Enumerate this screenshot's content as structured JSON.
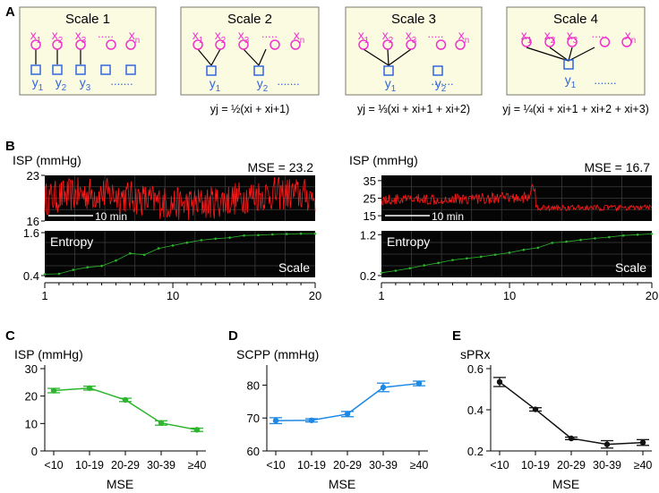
{
  "panel_labels": {
    "A": "A",
    "B": "B",
    "C": "C",
    "D": "D",
    "E": "E"
  },
  "colors": {
    "box_fill": "#fbfbe2",
    "box_stroke": "#7a7a6a",
    "node_circle": "#ee33cc",
    "node_square": "#3366dd",
    "green": "#2db52d",
    "blue": "#1e88e5",
    "black": "#111111",
    "red_trace": "#ff1a1a",
    "grid": "#3c3c3c",
    "dark_bg": "#050505"
  },
  "scales": [
    {
      "title": "Scale 1",
      "x_labels": [
        "x1",
        "x2",
        "x3",
        "xn"
      ],
      "dots": ".....",
      "y_labels": [
        "y1",
        "y2",
        "y3"
      ],
      "y_dots": ".......",
      "formula": ""
    },
    {
      "title": "Scale 2",
      "x_labels": [
        "x1",
        "x2",
        "x3",
        "xn"
      ],
      "dots": ".....",
      "y_labels": [
        "y1",
        "y2"
      ],
      "y_dots": ".......",
      "formula": "yj = ½(xi + xi+1)"
    },
    {
      "title": "Scale 3",
      "x_labels": [
        "x1",
        "x2",
        "x3",
        "xn"
      ],
      "dots": ".....",
      "y_labels": [
        "y1",
        "y2"
      ],
      "y_dots": ".......",
      "formula": "yj = ⅓(xi + xi+1 + xi+2)"
    },
    {
      "title": "Scale 4",
      "x_labels": [
        "x1",
        "x2",
        "x3",
        "xn"
      ],
      "dots": ".....",
      "y_labels": [
        "y1"
      ],
      "y_dots": ".......",
      "formula": "yj = ¼(xi + xi+1 + xi+2 + xi+3)"
    }
  ],
  "panel_b": {
    "left": {
      "isp_label": "ISP (mmHg)",
      "mse_label": "MSE = 23.2",
      "isp_ticks": [
        "23",
        "16"
      ],
      "time_bar_label": "10 min",
      "entropy_label": "Entropy",
      "scale_label": "Scale",
      "entropy_ticks": [
        "1.6",
        "0.4"
      ],
      "x_ticks": [
        "1",
        "10",
        "20"
      ],
      "entropy_values": [
        0.44,
        0.45,
        0.56,
        0.63,
        0.67,
        0.82,
        1.02,
        0.98,
        1.16,
        1.24,
        1.32,
        1.39,
        1.43,
        1.46,
        1.52,
        1.53,
        1.55,
        1.56,
        1.57,
        1.57
      ]
    },
    "right": {
      "isp_label": "ISP (mmHg)",
      "mse_label": "MSE = 16.7",
      "isp_ticks": [
        "35",
        "25",
        "15"
      ],
      "time_bar_label": "10 min",
      "entropy_label": "Entropy",
      "scale_label": "Scale",
      "entropy_ticks": [
        "1.2",
        "0.2"
      ],
      "x_ticks": [
        "1",
        "10",
        "20"
      ],
      "entropy_values": [
        0.27,
        0.32,
        0.38,
        0.45,
        0.51,
        0.58,
        0.62,
        0.66,
        0.71,
        0.76,
        0.83,
        0.88,
        1.0,
        1.03,
        1.07,
        1.11,
        1.14,
        1.18,
        1.2,
        1.22
      ]
    }
  },
  "chart_data": [
    {
      "type": "line",
      "title": "ISP (mmHg)",
      "xlabel": "MSE",
      "ylabel": "ISP (mmHg)",
      "categories": [
        "<10",
        "10-19",
        "20-29",
        "30-39",
        "≥40"
      ],
      "values": [
        22.0,
        22.9,
        18.6,
        10.2,
        7.7
      ],
      "errors": [
        0.8,
        0.7,
        0.6,
        0.8,
        0.6
      ],
      "ylim": [
        0,
        30
      ],
      "yticks": [
        "0",
        "10",
        "20",
        "30"
      ],
      "color": "#2db52d"
    },
    {
      "type": "line",
      "title": "SCPP (mmHg)",
      "xlabel": "MSE",
      "ylabel": "SCPP (mmHg)",
      "categories": [
        "<10",
        "10-19",
        "20-29",
        "30-39",
        "≥40"
      ],
      "values": [
        69.2,
        69.3,
        71.2,
        79.3,
        80.5
      ],
      "errors": [
        0.9,
        0.5,
        0.8,
        1.3,
        0.7
      ],
      "ylim": [
        60,
        85
      ],
      "yticks": [
        "60",
        "70",
        "80"
      ],
      "color": "#1e88e5"
    },
    {
      "type": "line",
      "title": "sPRx",
      "xlabel": "MSE",
      "ylabel": "sPRx",
      "categories": [
        "<10",
        "10-19",
        "20-29",
        "30-39",
        "≥40"
      ],
      "values": [
        0.535,
        0.402,
        0.261,
        0.232,
        0.241
      ],
      "errors": [
        0.022,
        0.008,
        0.006,
        0.018,
        0.014
      ],
      "ylim": [
        0.2,
        0.6
      ],
      "yticks": [
        "0.2",
        "0.4",
        "0.6"
      ],
      "color": "#111111"
    }
  ]
}
